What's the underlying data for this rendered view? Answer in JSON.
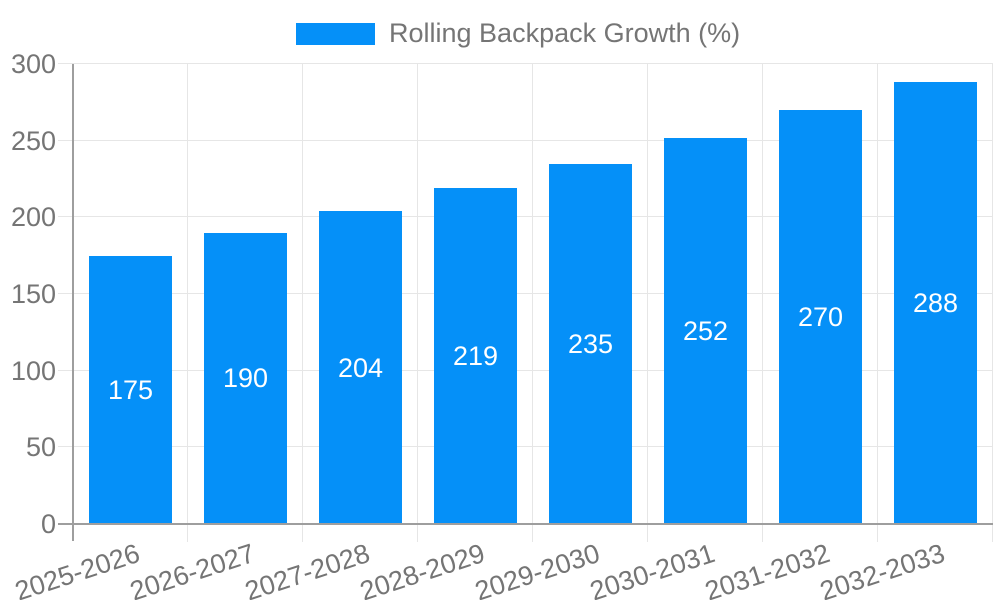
{
  "chart_data": {
    "type": "bar",
    "legend_label": "Rolling Backpack Growth (%)",
    "legend_position": "top",
    "categories": [
      "2025-2026",
      "2026-2027",
      "2027-2028",
      "2028-2029",
      "2029-2030",
      "2030-2031",
      "2031-2032",
      "2032-2033"
    ],
    "values": [
      175,
      190,
      204,
      219,
      235,
      252,
      270,
      288
    ],
    "xlabel": "",
    "ylabel": "",
    "ylim": [
      0,
      300
    ],
    "yticks": [
      0,
      50,
      100,
      150,
      200,
      250,
      300
    ],
    "grid": true,
    "colors": {
      "bar": "#0590f8",
      "bar_label": "#ffffff",
      "axis_text": "#757575",
      "gridline": "#e6e6e6",
      "baseline": "#9e9e9e",
      "background": "#ffffff"
    }
  }
}
